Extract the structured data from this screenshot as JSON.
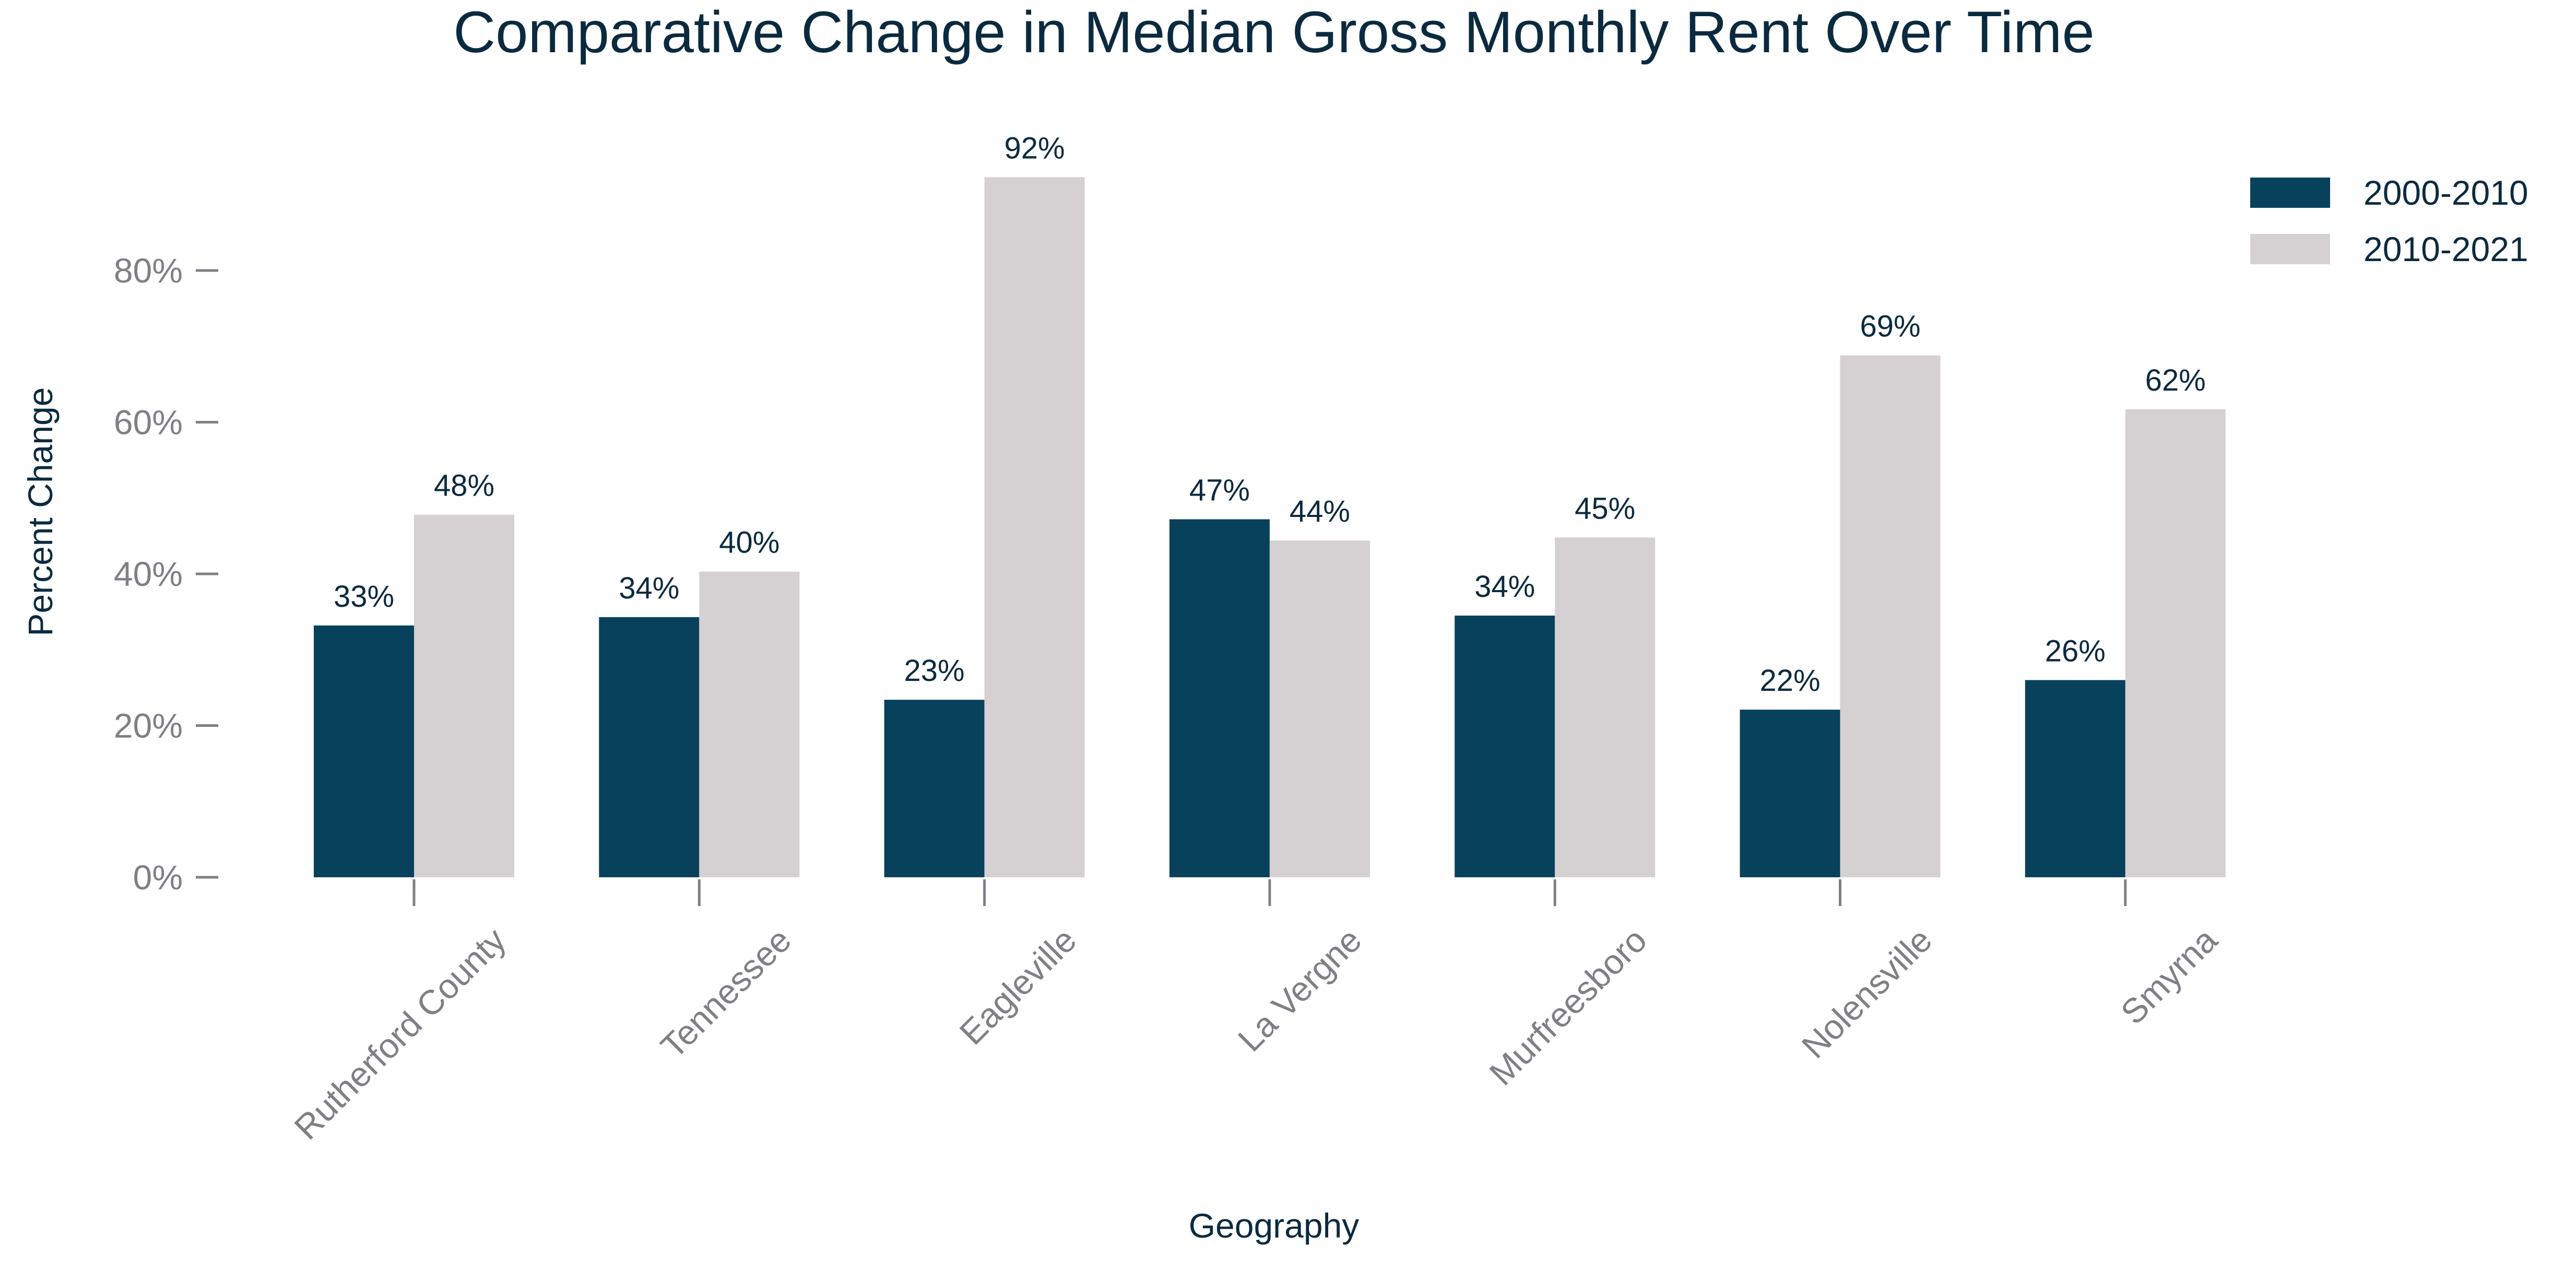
{
  "chart_data": {
    "type": "bar",
    "title": "Comparative Change in Median Gross Monthly Rent Over Time",
    "xlabel": "Geography",
    "ylabel": "Percent Change",
    "categories": [
      "Rutherford County",
      "Tennessee",
      "Eagleville",
      "La Vergne",
      "Murfreesboro",
      "Nolensville",
      "Smyrna"
    ],
    "series": [
      {
        "name": "2000-2010",
        "values": [
          33.2,
          34.3,
          23.4,
          47.2,
          34.5,
          22.1,
          26.0
        ],
        "labels": [
          "33%",
          "34%",
          "23%",
          "47%",
          "34%",
          "22%",
          "26%"
        ],
        "color": "#08415c"
      },
      {
        "name": "2010-2021",
        "values": [
          47.8,
          40.3,
          92.3,
          44.4,
          44.8,
          68.8,
          61.7
        ],
        "labels": [
          "48%",
          "40%",
          "92%",
          "44%",
          "45%",
          "69%",
          "62%"
        ],
        "color": "#d5d0d2"
      }
    ],
    "yticks": [
      0,
      20,
      40,
      60,
      80
    ],
    "ytick_labels": [
      "0%",
      "20%",
      "40%",
      "60%",
      "80%"
    ],
    "ylim": [
      0,
      97
    ],
    "grid": false,
    "legend_position": "top-right",
    "text_color": "#0b2a3f",
    "tick_color": "#7f7f86"
  }
}
